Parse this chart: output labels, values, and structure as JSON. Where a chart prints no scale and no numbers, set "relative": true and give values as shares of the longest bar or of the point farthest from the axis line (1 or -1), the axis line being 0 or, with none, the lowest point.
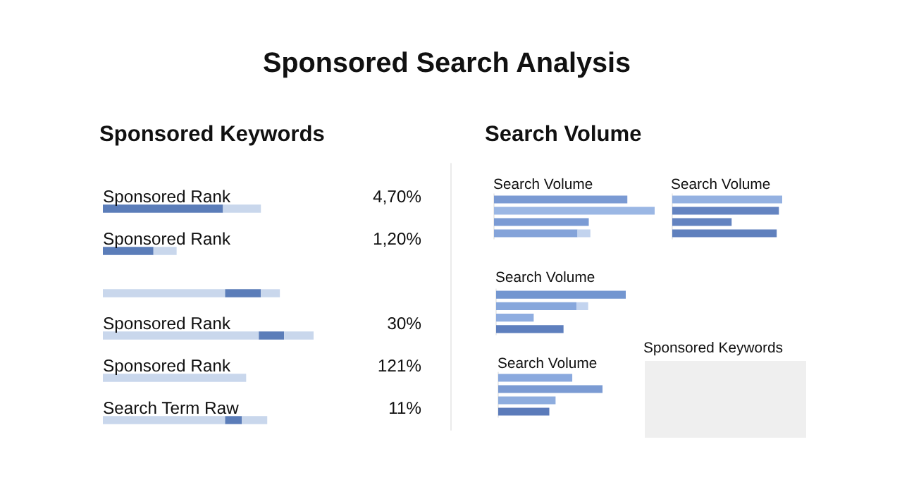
{
  "chart_data": [
    {
      "type": "other",
      "title": "Sponsored Search Analysis"
    },
    {
      "type": "bar",
      "title": "Sponsored Keywords",
      "orientation": "horizontal",
      "stacked": true,
      "relative": true,
      "categories": [
        "Sponsored Rank",
        "Sponsored Rank",
        null,
        "Sponsored Rank",
        "Sponsored Rank",
        "Search Term Raw"
      ],
      "value_labels": [
        "4,70%",
        "1,20%",
        null,
        "30%",
        "121%",
        "11%"
      ],
      "series": [
        {
          "colors": [
            "#5b7db9",
            "#5b7db9",
            "#c9d7ec",
            "#c9d7ec",
            "#c9d7ec",
            "#c9d7ec"
          ],
          "values": [
            0.57,
            0.24,
            0.58,
            0.74,
            0.68,
            0.58
          ]
        },
        {
          "colors": [
            "#c9d7ec",
            "#c9d7ec",
            "#5b7db9",
            "#5b7db9",
            null,
            "#5b7db9"
          ],
          "values": [
            0.18,
            0.11,
            0.17,
            0.12,
            null,
            0.08
          ]
        },
        {
          "colors": [
            null,
            null,
            "#c9d7ec",
            "#c9d7ec",
            null,
            "#c9d7ec"
          ],
          "values": [
            null,
            null,
            0.09,
            0.14,
            null,
            0.12
          ]
        }
      ]
    },
    {
      "type": "other",
      "title": "Search Volume"
    },
    {
      "type": "bar",
      "title": "Search Volume",
      "orientation": "horizontal",
      "stacked": true,
      "relative": true,
      "categories": [
        null,
        null,
        null,
        null
      ],
      "series": [
        {
          "colors": [
            "#7a9ad3",
            "#9bb7e4",
            "#7b9bd4",
            "#84a3d9"
          ],
          "values": [
            0.83,
            1,
            0.59,
            0.52
          ]
        },
        {
          "colors": [
            null,
            null,
            null,
            "#c2d3ee"
          ],
          "values": [
            null,
            null,
            null,
            0.08
          ]
        }
      ]
    },
    {
      "type": "bar",
      "title": "Search Volume",
      "orientation": "horizontal",
      "relative": true,
      "categories": [
        null,
        null,
        null,
        null
      ],
      "colors": [
        "#94b1e1",
        "#6484c1",
        "#6383c0",
        "#5f80bd"
      ],
      "values": [
        1,
        0.97,
        0.54,
        0.95
      ]
    },
    {
      "type": "bar",
      "title": "Search Volume",
      "orientation": "horizontal",
      "stacked": true,
      "relative": true,
      "categories": [
        null,
        null,
        null,
        null
      ],
      "series": [
        {
          "colors": [
            "#7396d0",
            "#87a7dc",
            "#8fade0",
            "#5e7fbe"
          ],
          "values": [
            1,
            0.62,
            0.29,
            0.52
          ]
        },
        {
          "colors": [
            null,
            "#c3d4ef",
            null,
            null
          ],
          "values": [
            null,
            0.09,
            null,
            null
          ]
        }
      ]
    },
    {
      "type": "bar",
      "title": "Search Volume",
      "orientation": "horizontal",
      "relative": true,
      "categories": [
        null,
        null,
        null,
        null
      ],
      "colors": [
        "#8aa9de",
        "#7b9bd3",
        "#8eadde",
        "#5b7bba"
      ],
      "values": [
        0.71,
        1,
        0.55,
        0.49
      ]
    },
    {
      "type": "other",
      "title": "Sponsored Keywords"
    }
  ]
}
